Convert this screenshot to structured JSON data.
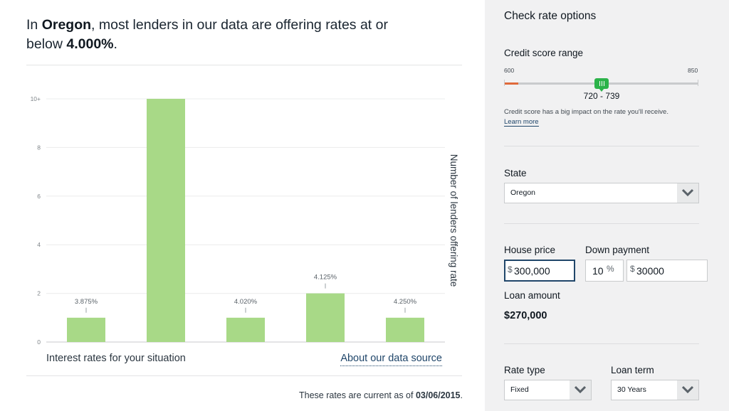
{
  "headline": {
    "prefix": "In ",
    "state": "Oregon",
    "middle": ", most lenders in our data are offering rates at or below ",
    "rate": "4.000%",
    "suffix": "."
  },
  "chart_data": {
    "type": "bar",
    "categories": [
      "3.875%",
      "",
      "4.020%",
      "4.125%",
      "4.250%"
    ],
    "values": [
      1,
      10,
      1,
      2,
      1
    ],
    "title": "",
    "xlabel": "Interest rates for your situation",
    "ylabel": "Number of lenders offering rate",
    "ylim": [
      0,
      10
    ],
    "yticks": [
      "0",
      "2",
      "4",
      "6",
      "8",
      "10+"
    ],
    "grid": true,
    "colors": {
      "bar": "#a8d987",
      "grid": "#ebecec",
      "axis": "#c8cacc",
      "tick_text": "#7f8589"
    }
  },
  "footer": {
    "x_caption": "Interest rates for your situation",
    "about_link": "About our data source",
    "asof_prefix": "These rates are current as of ",
    "asof_date": "03/06/2015",
    "asof_suffix": "."
  },
  "sidebar": {
    "title": "Check rate options",
    "credit": {
      "label": "Credit score range",
      "min": "600",
      "max": "850",
      "selected_range": "720 - 739",
      "help": "Credit score has a big impact on the rate you'll receive.",
      "learn_more": "Learn more"
    },
    "state": {
      "label": "State",
      "value": "Oregon"
    },
    "house_price": {
      "label": "House price",
      "prefix": "$",
      "value": "300,000"
    },
    "down_payment": {
      "label": "Down payment",
      "percent_value": "10",
      "percent_sign": "%",
      "prefix": "$",
      "amount_value": "30000"
    },
    "loan_amount": {
      "label": "Loan amount",
      "value": "$270,000"
    },
    "rate_type": {
      "label": "Rate type",
      "value": "Fixed"
    },
    "loan_term": {
      "label": "Loan term",
      "value": "30 Years"
    }
  },
  "colors": {
    "sidebar_bg": "#f1f1f2",
    "link": "#20466a",
    "slider_handle": "#2cb34a",
    "slider_low": "#e06a3b"
  }
}
